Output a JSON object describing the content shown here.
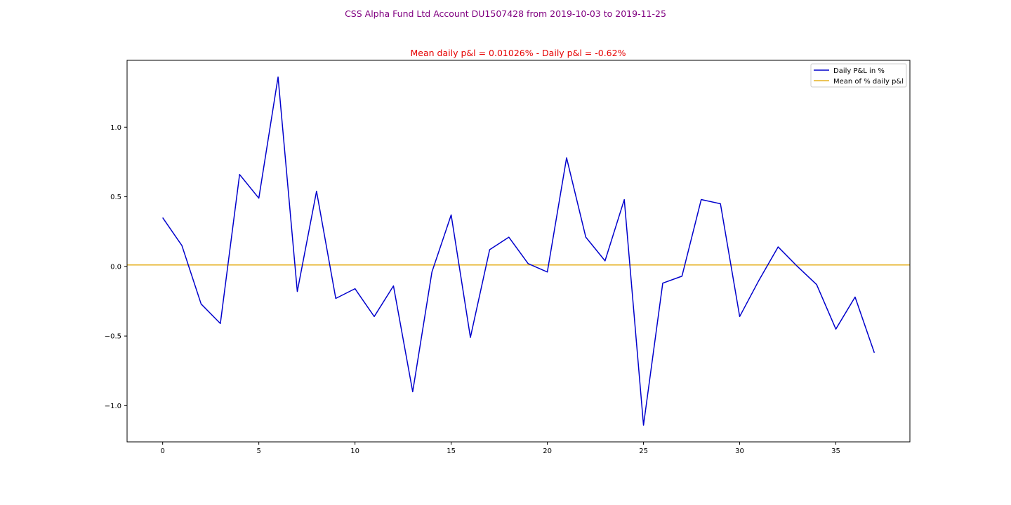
{
  "figure": {
    "suptitle": "CSS Alpha Fund Ltd Account DU1507428   from 2019-10-03 to 2019-11-25",
    "suptitle_color": "#800080"
  },
  "chart_data": {
    "type": "line",
    "title": "Mean daily p&l = 0.01026% - Daily p&l = -0.62%",
    "title_color": "#e60000",
    "xlabel": "",
    "ylabel": "",
    "xlim": [
      -1.85,
      38.85
    ],
    "ylim": [
      -1.26,
      1.48
    ],
    "xticks": [
      0,
      5,
      10,
      15,
      20,
      25,
      30,
      35
    ],
    "xtick_labels": [
      "0",
      "5",
      "10",
      "15",
      "20",
      "25",
      "30",
      "35"
    ],
    "yticks": [
      -1.0,
      -0.5,
      0.0,
      0.5,
      1.0
    ],
    "ytick_labels": [
      "−1.0",
      "−0.5",
      "0.0",
      "0.5",
      "1.0"
    ],
    "grid": false,
    "legend_position": "upper right",
    "series": [
      {
        "name": "Daily P&L in %",
        "color": "#0000cc",
        "x": [
          0,
          1,
          2,
          3,
          4,
          5,
          6,
          7,
          8,
          9,
          10,
          11,
          12,
          13,
          14,
          15,
          16,
          17,
          18,
          19,
          20,
          21,
          22,
          23,
          24,
          25,
          26,
          27,
          28,
          29,
          30,
          31,
          32,
          33,
          34,
          35,
          36,
          37
        ],
        "y": [
          0.35,
          0.15,
          -0.27,
          -0.41,
          0.66,
          0.49,
          1.36,
          -0.18,
          0.54,
          -0.23,
          -0.16,
          -0.36,
          -0.14,
          -0.9,
          -0.04,
          0.37,
          -0.51,
          0.12,
          0.21,
          0.02,
          -0.04,
          0.78,
          0.21,
          0.04,
          0.48,
          -1.14,
          -0.12,
          -0.07,
          0.48,
          0.45,
          -0.36,
          -0.1,
          0.14,
          0.0,
          -0.13,
          -0.45,
          -0.22,
          -0.62
        ]
      }
    ],
    "hlines": [
      {
        "name": "Mean of % daily p&l",
        "y": 0.01026,
        "color": "#e6b020"
      }
    ]
  }
}
